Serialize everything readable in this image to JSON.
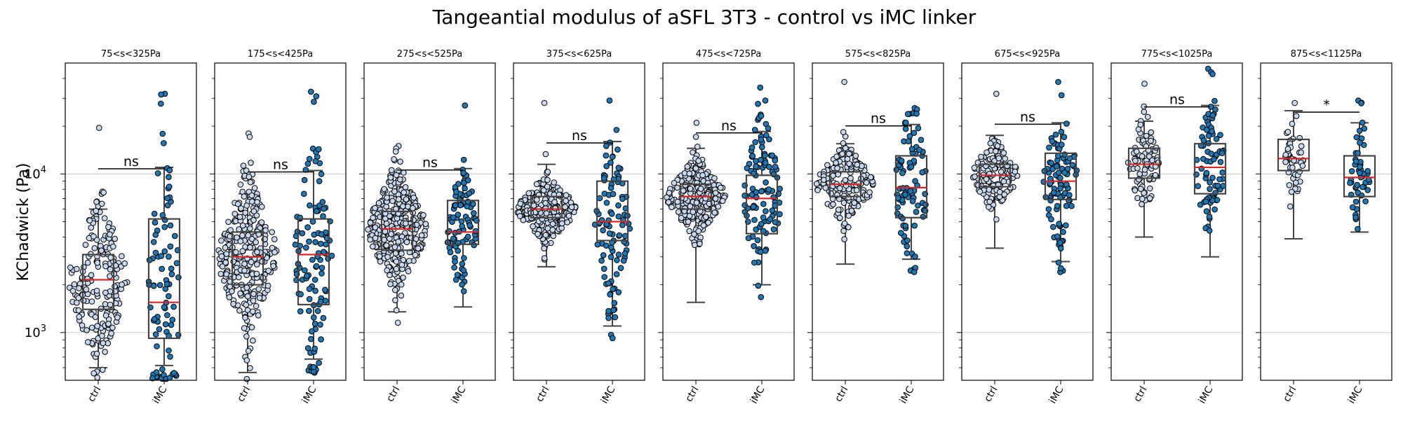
{
  "chart_data": {
    "type": "box",
    "title": "Tangeantial modulus of aSFL 3T3 - control vs iMC linker",
    "ylabel": "KChadwick (Pa)",
    "yscale": "log",
    "ylim": [
      500,
      50000
    ],
    "yticks": [
      {
        "value": 1000,
        "base": "10",
        "exp": "3"
      },
      {
        "value": 10000,
        "base": "10",
        "exp": "4"
      }
    ],
    "grid": "horizontal",
    "categories": [
      "ctrl",
      "iMC"
    ],
    "colors": {
      "ctrl": "#c8d8ef",
      "iMC": "#1f77b4",
      "median": "#d62728",
      "box": "#444444"
    },
    "panels": [
      {
        "title": "75<s<325Pa",
        "sig": "ns",
        "groups": [
          {
            "name": "ctrl",
            "n": 190,
            "q1": 1400,
            "median": 2150,
            "q3": 3100,
            "wlo": 600,
            "whi": 6000,
            "max": 19500
          },
          {
            "name": "iMC",
            "n": 90,
            "q1": 920,
            "median": 1550,
            "q3": 5200,
            "wlo": 620,
            "whi": 11000,
            "max": 32000
          }
        ]
      },
      {
        "title": "175<s<425Pa",
        "sig": "ns",
        "groups": [
          {
            "name": "ctrl",
            "n": 290,
            "q1": 2000,
            "median": 3000,
            "q3": 4300,
            "wlo": 560,
            "whi": 7500,
            "max": 18000
          },
          {
            "name": "iMC",
            "n": 110,
            "q1": 1500,
            "median": 3100,
            "q3": 5200,
            "wlo": 680,
            "whi": 10500,
            "max": 33000
          }
        ]
      },
      {
        "title": "275<s<525Pa",
        "sig": "ns",
        "groups": [
          {
            "name": "ctrl",
            "n": 330,
            "q1": 3300,
            "median": 4500,
            "q3": 5800,
            "wlo": 1350,
            "whi": 10000,
            "max": 15000
          },
          {
            "name": "iMC",
            "n": 90,
            "q1": 3600,
            "median": 4300,
            "q3": 6800,
            "wlo": 1450,
            "whi": 10800,
            "max": 27000
          }
        ]
      },
      {
        "title": "375<s<625Pa",
        "sig": "ns",
        "groups": [
          {
            "name": "ctrl",
            "n": 260,
            "q1": 5300,
            "median": 6000,
            "q3": 7200,
            "wlo": 2600,
            "whi": 11500,
            "max": 28000
          },
          {
            "name": "iMC",
            "n": 100,
            "q1": 3800,
            "median": 5000,
            "q3": 9000,
            "wlo": 1100,
            "whi": 16000,
            "max": 29000
          }
        ]
      },
      {
        "title": "475<s<725Pa",
        "sig": "ns",
        "groups": [
          {
            "name": "ctrl",
            "n": 260,
            "q1": 6000,
            "median": 7200,
            "q3": 8600,
            "wlo": 1550,
            "whi": 14500,
            "max": 21000
          },
          {
            "name": "iMC",
            "n": 110,
            "q1": 4200,
            "median": 7000,
            "q3": 9800,
            "wlo": 2000,
            "whi": 18500,
            "max": 35000
          }
        ]
      },
      {
        "title": "575<s<825Pa",
        "sig": "ns",
        "groups": [
          {
            "name": "ctrl",
            "n": 180,
            "q1": 7200,
            "median": 8600,
            "q3": 10300,
            "wlo": 2700,
            "whi": 15500,
            "max": 38000
          },
          {
            "name": "iMC",
            "n": 90,
            "q1": 5300,
            "median": 8200,
            "q3": 13000,
            "wlo": 2900,
            "whi": 20500,
            "max": 26000
          }
        ]
      },
      {
        "title": "675<s<925Pa",
        "sig": "ns",
        "groups": [
          {
            "name": "ctrl",
            "n": 140,
            "q1": 8300,
            "median": 9800,
            "q3": 11500,
            "wlo": 3400,
            "whi": 17500,
            "max": 32000
          },
          {
            "name": "iMC",
            "n": 100,
            "q1": 6900,
            "median": 9000,
            "q3": 13500,
            "wlo": 2800,
            "whi": 21000,
            "max": 38000
          }
        ]
      },
      {
        "title": "775<s<1025Pa",
        "sig": "ns",
        "groups": [
          {
            "name": "ctrl",
            "n": 90,
            "q1": 9400,
            "median": 11500,
            "q3": 14500,
            "wlo": 4000,
            "whi": 21500,
            "max": 37000
          },
          {
            "name": "iMC",
            "n": 80,
            "q1": 7500,
            "median": 11000,
            "q3": 15500,
            "wlo": 3000,
            "whi": 27000,
            "max": 46000
          }
        ]
      },
      {
        "title": "875<s<1125Pa",
        "sig": "*",
        "groups": [
          {
            "name": "ctrl",
            "n": 50,
            "q1": 10500,
            "median": 12500,
            "q3": 16500,
            "wlo": 3900,
            "whi": 25000,
            "max": 28000
          },
          {
            "name": "iMC",
            "n": 50,
            "q1": 7200,
            "median": 9500,
            "q3": 13000,
            "wlo": 4300,
            "whi": 21000,
            "max": 29000
          }
        ]
      }
    ]
  }
}
